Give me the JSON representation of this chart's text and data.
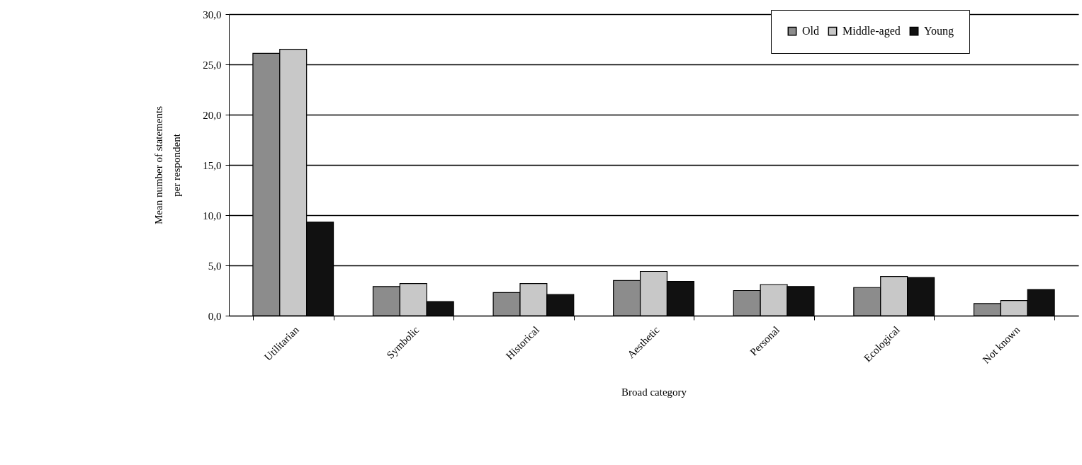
{
  "chart_data": {
    "type": "bar",
    "xlabel": "Broad category",
    "ylabel": "Mean number of statements\nper respondent",
    "categories": [
      "Utilitarian",
      "Symbolic",
      "Historical",
      "Aesthetic",
      "Personal",
      "Ecological",
      "Not known"
    ],
    "series": [
      {
        "name": "Old",
        "color": "#8c8c8c",
        "values": [
          26.1,
          2.9,
          2.3,
          3.5,
          2.5,
          2.8,
          1.2
        ]
      },
      {
        "name": "Middle-aged",
        "color": "#c8c8c8",
        "values": [
          26.5,
          3.2,
          3.2,
          4.4,
          3.1,
          3.9,
          1.5
        ]
      },
      {
        "name": "Young",
        "color": "#111111",
        "values": [
          9.3,
          1.4,
          2.1,
          3.4,
          2.9,
          3.8,
          2.6
        ]
      }
    ],
    "ylim": [
      0,
      30
    ],
    "yticks": [
      {
        "value": 0,
        "label": "0,0"
      },
      {
        "value": 5,
        "label": "5,0"
      },
      {
        "value": 10,
        "label": "10,0"
      },
      {
        "value": 15,
        "label": "15,0"
      },
      {
        "value": 20,
        "label": "20,0"
      },
      {
        "value": 25,
        "label": "25,0"
      },
      {
        "value": 30,
        "label": "30,0"
      }
    ],
    "grid": "y",
    "legend": "top right"
  }
}
